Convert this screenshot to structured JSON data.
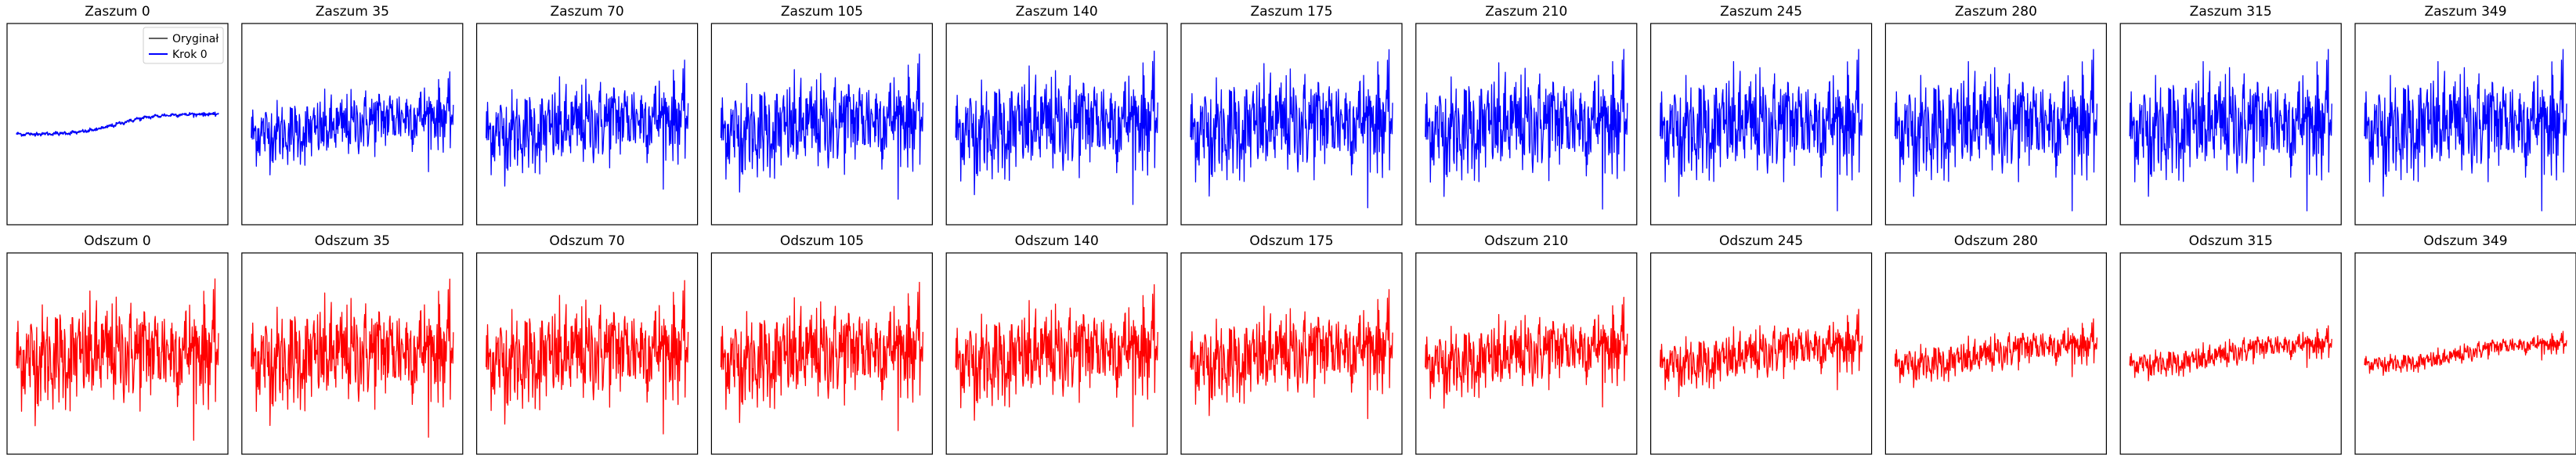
{
  "legend": {
    "original": "Oryginał",
    "step": "Krok 0"
  },
  "colors": {
    "original": "#000000",
    "noise": "#0000ff",
    "denoise": "#ff0000",
    "frame": "#000000"
  },
  "chart_data": {
    "type": "line",
    "rows": 2,
    "cols": 11,
    "grid": false,
    "axis_ticks": false,
    "legend_location": "upper-right of first panel",
    "panels": [
      {
        "title": "Zaszum 0",
        "series": "noise",
        "step": 0,
        "noise_level": 0.0
      },
      {
        "title": "Zaszum 35",
        "series": "noise",
        "step": 35,
        "noise_level": 0.62
      },
      {
        "title": "Zaszum 70",
        "series": "noise",
        "step": 70,
        "noise_level": 0.8
      },
      {
        "title": "Zaszum 105",
        "series": "noise",
        "step": 105,
        "noise_level": 0.9
      },
      {
        "title": "Zaszum 140",
        "series": "noise",
        "step": 140,
        "noise_level": 0.95
      },
      {
        "title": "Zaszum 175",
        "series": "noise",
        "step": 175,
        "noise_level": 0.98
      },
      {
        "title": "Zaszum 210",
        "series": "noise",
        "step": 210,
        "noise_level": 0.99
      },
      {
        "title": "Zaszum 245",
        "series": "noise",
        "step": 245,
        "noise_level": 1.0
      },
      {
        "title": "Zaszum 280",
        "series": "noise",
        "step": 280,
        "noise_level": 1.0
      },
      {
        "title": "Zaszum 315",
        "series": "noise",
        "step": 315,
        "noise_level": 1.0
      },
      {
        "title": "Zaszum 349",
        "series": "noise",
        "step": 349,
        "noise_level": 1.0
      },
      {
        "title": "Odszum 0",
        "series": "denoise",
        "step": 0,
        "noise_level": 1.0
      },
      {
        "title": "Odszum 35",
        "series": "denoise",
        "step": 35,
        "noise_level": 0.98
      },
      {
        "title": "Odszum 70",
        "series": "denoise",
        "step": 70,
        "noise_level": 0.95
      },
      {
        "title": "Odszum 105",
        "series": "denoise",
        "step": 105,
        "noise_level": 0.92
      },
      {
        "title": "Odszum 140",
        "series": "denoise",
        "step": 140,
        "noise_level": 0.88
      },
      {
        "title": "Odszum 175",
        "series": "denoise",
        "step": 175,
        "noise_level": 0.8
      },
      {
        "title": "Odszum 210",
        "series": "denoise",
        "step": 210,
        "noise_level": 0.68
      },
      {
        "title": "Odszum 245",
        "series": "denoise",
        "step": 245,
        "noise_level": 0.5
      },
      {
        "title": "Odszum 280",
        "series": "denoise",
        "step": 280,
        "noise_level": 0.36
      },
      {
        "title": "Odszum 315",
        "series": "denoise",
        "step": 315,
        "noise_level": 0.26
      },
      {
        "title": "Odszum 349",
        "series": "denoise",
        "step": 349,
        "noise_level": 0.18
      }
    ]
  }
}
